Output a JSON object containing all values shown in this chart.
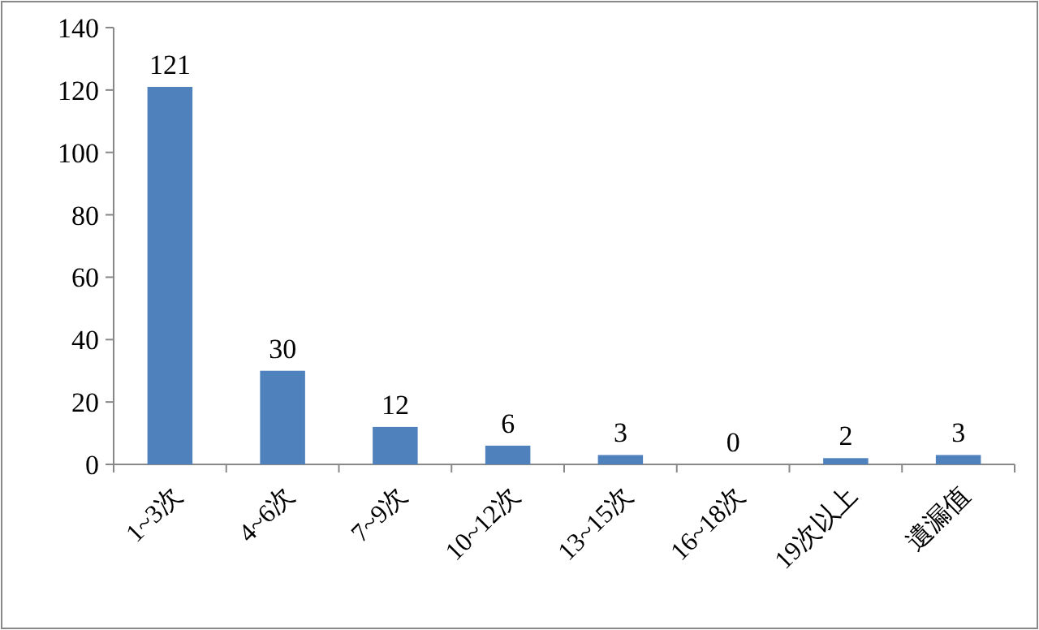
{
  "chart_data": {
    "type": "bar",
    "categories": [
      "1~3次",
      "4~6次",
      "7~9次",
      "10~12次",
      "13~15次",
      "16~18次",
      "19次以上",
      "遺漏值"
    ],
    "values": [
      121,
      30,
      12,
      6,
      3,
      0,
      2,
      3
    ],
    "color": "#4f81bd",
    "ylim": [
      0,
      140
    ],
    "yticks": [
      0,
      20,
      40,
      60,
      80,
      100,
      120,
      140
    ],
    "data_labels": true
  }
}
